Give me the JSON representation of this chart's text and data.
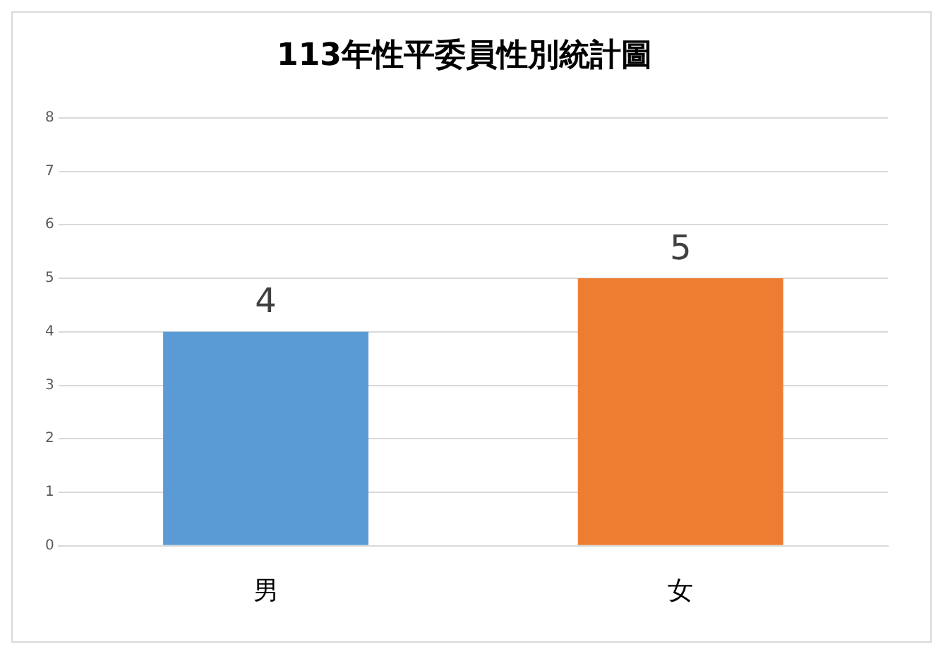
{
  "chart_data": {
    "type": "bar",
    "title": "113年性平委員性別統計圖",
    "categories": [
      "男",
      "女"
    ],
    "values": [
      4,
      5
    ],
    "colors": [
      "#5b9bd5",
      "#ed7d31"
    ],
    "ylim": [
      0,
      8
    ],
    "yticks": [
      0,
      1,
      2,
      3,
      4,
      5,
      6,
      7,
      8
    ],
    "grid": "y",
    "data_labels": true
  }
}
